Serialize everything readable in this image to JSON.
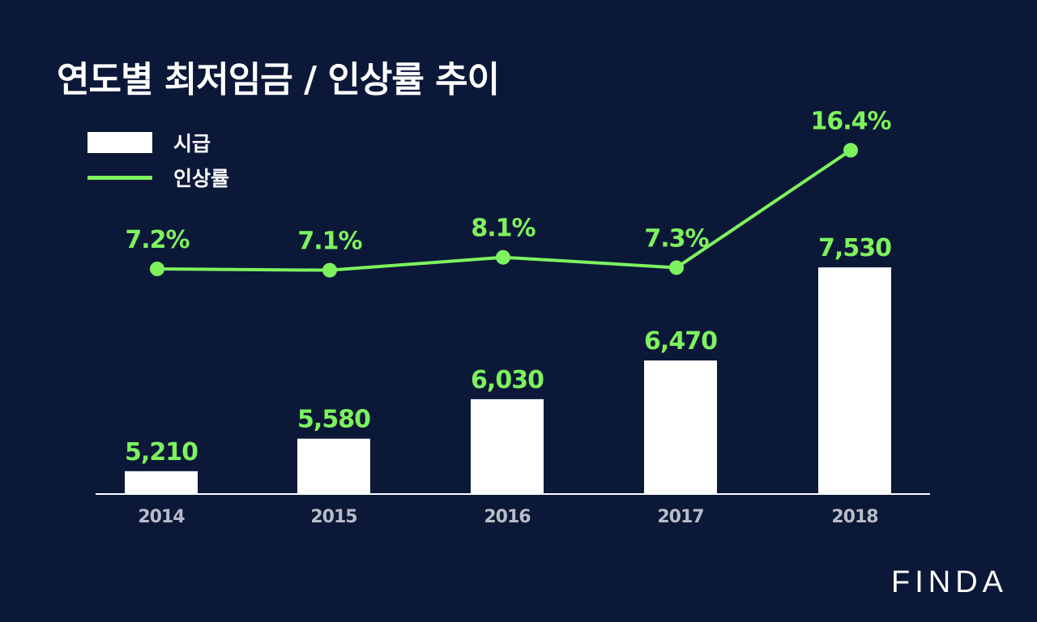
{
  "title": "연도별 최저임금 / 인상률 추이",
  "legend": {
    "bar_label": "시급",
    "line_label": "인상률"
  },
  "brand": "FINDA",
  "colors": {
    "background": "#0b1838",
    "bar": "#ffffff",
    "line": "#7df25e",
    "label": "#7df25e",
    "axis_text": "#b8bcc8",
    "axis_line": "#ffffff"
  },
  "chart_data": {
    "type": "bar",
    "title": "연도별 최저임금 / 인상률 추이",
    "categories": [
      "2014",
      "2015",
      "2016",
      "2017",
      "2018"
    ],
    "series": [
      {
        "name": "시급",
        "type": "bar",
        "values": [
          5210,
          5580,
          6030,
          6470,
          7530
        ],
        "labels": [
          "5,210",
          "5,580",
          "6,030",
          "6,470",
          "7,530"
        ]
      },
      {
        "name": "인상률",
        "type": "line",
        "values": [
          7.2,
          7.1,
          8.1,
          7.3,
          16.4
        ],
        "labels": [
          "7.2%",
          "7.1%",
          "8.1%",
          "7.3%",
          "16.4%"
        ]
      }
    ],
    "ylim_bar": [
      4950,
      7550
    ],
    "ylim_line": [
      4.0,
      17.5
    ],
    "grid": false,
    "legend_position": "top-left"
  }
}
